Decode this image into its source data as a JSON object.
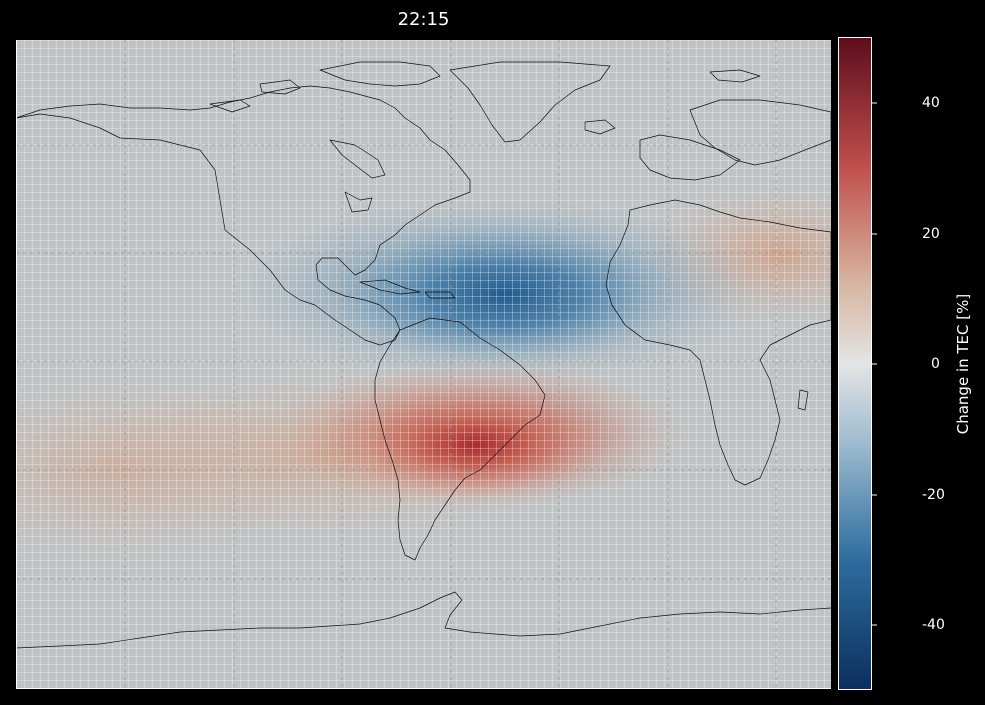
{
  "figure": {
    "title": "22:15",
    "colorbar": {
      "label": "Change in TEC [%]",
      "ticks": [
        "40",
        "20",
        "0",
        "-20",
        "-40"
      ],
      "range": [
        -50,
        50
      ],
      "colors": {
        "negative": "#0b2f5e",
        "mid_neg": "#2e6d9e",
        "light_neg": "#9fbcd0",
        "zero": "#e4e4e4",
        "light_pos": "#d8b6a2",
        "mid_pos": "#c0504d",
        "positive": "#5e0d1c"
      }
    }
  },
  "map_colors": {
    "background": "#bfc3c5",
    "grid": "#ffffff",
    "coastline": "#111111"
  }
}
